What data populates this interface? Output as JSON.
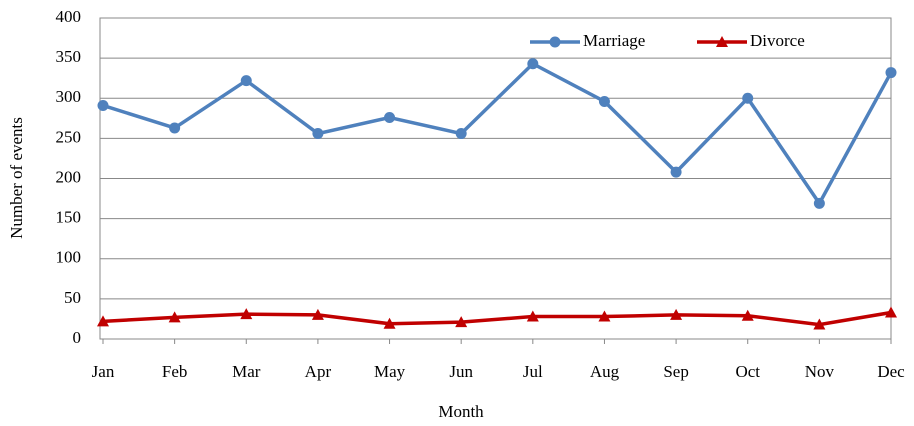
{
  "chart_data": {
    "type": "line",
    "x_label": "Month",
    "y_label": "Number of events",
    "categories": [
      "Jan",
      "Feb",
      "Mar",
      "Apr",
      "May",
      "Jun",
      "Jul",
      "Aug",
      "Sep",
      "Oct",
      "Nov",
      "Dec"
    ],
    "series": [
      {
        "name": "Marriage",
        "color": "#4f81bd",
        "marker": "circle",
        "values": [
          291,
          263,
          322,
          256,
          276,
          256,
          343,
          296,
          208,
          300,
          169,
          332
        ]
      },
      {
        "name": "Divorce",
        "color": "#c00000",
        "marker": "triangle",
        "values": [
          22,
          27,
          31,
          30,
          19,
          21,
          28,
          28,
          30,
          29,
          18,
          33
        ]
      }
    ],
    "ylim": [
      0,
      400
    ],
    "yticks": [
      0,
      50,
      100,
      150,
      200,
      250,
      300,
      350,
      400
    ],
    "grid": true,
    "legend": "top-right"
  }
}
